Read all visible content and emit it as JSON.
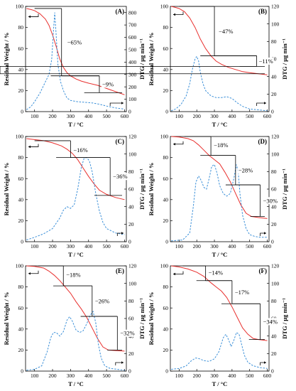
{
  "chart_data": [
    {
      "type": "line",
      "panel": "(A)",
      "xlabel": "T / °C",
      "ylabel": "Residual Weight / %",
      "y2label": "DTG / µg min⁻¹",
      "xlim": [
        50,
        610
      ],
      "ylim": [
        0,
        100
      ],
      "y2lim": [
        0,
        850
      ],
      "xticks": [
        100,
        200,
        300,
        400,
        500,
        600
      ],
      "yticks": [
        0,
        20,
        40,
        60,
        80,
        100
      ],
      "y2ticks": [
        0,
        100,
        200,
        300,
        400,
        500,
        600,
        700,
        800
      ],
      "series": [
        {
          "axis": "left",
          "style": "solid",
          "color": "#e8302e",
          "x": [
            55,
            80,
            100,
            130,
            160,
            180,
            200,
            220,
            240,
            260,
            280,
            300,
            330,
            360,
            400,
            450,
            500,
            550,
            600
          ],
          "y": [
            98,
            97,
            96,
            93,
            88,
            82,
            73,
            62,
            50,
            42,
            37,
            34,
            31,
            29,
            27,
            25,
            22,
            19,
            16
          ]
        },
        {
          "axis": "right",
          "style": "dashed",
          "color": "#3a8fd8",
          "x": [
            55,
            80,
            100,
            130,
            160,
            180,
            195,
            205,
            212,
            220,
            230,
            245,
            260,
            280,
            300,
            340,
            380,
            420,
            460,
            500,
            550,
            600
          ],
          "y": [
            15,
            40,
            80,
            150,
            240,
            300,
            420,
            650,
            800,
            620,
            380,
            240,
            170,
            110,
            90,
            80,
            75,
            70,
            60,
            45,
            30,
            20
          ]
        }
      ],
      "annotations": [
        "−65%",
        "−9%"
      ],
      "marks": {
        "bracket_temps": [
          100,
          250,
          460
        ],
        "levels": [
          98,
          34,
          18
        ],
        "right_arrow_at": 520
      }
    },
    {
      "type": "line",
      "panel": "(B)",
      "xlabel": "T / °C",
      "ylabel": "Residual Weight / %",
      "y2label": "DTG / µg min⁻¹",
      "xlim": [
        50,
        610
      ],
      "ylim": [
        0,
        100
      ],
      "y2lim": [
        0,
        120
      ],
      "xticks": [
        100,
        200,
        300,
        400,
        500,
        600
      ],
      "yticks": [
        0,
        20,
        40,
        60,
        80,
        100
      ],
      "y2ticks": [
        0,
        20,
        40,
        60,
        80,
        100,
        120
      ],
      "series": [
        {
          "axis": "left",
          "style": "solid",
          "color": "#e8302e",
          "x": [
            55,
            80,
            100,
            130,
            160,
            190,
            220,
            250,
            280,
            310,
            340,
            380,
            420,
            460,
            500,
            550,
            600
          ],
          "y": [
            100,
            99,
            98,
            95,
            89,
            80,
            69,
            60,
            53,
            48,
            45,
            42,
            40,
            38,
            37,
            36,
            35
          ]
        },
        {
          "axis": "right",
          "style": "dashed",
          "color": "#3a8fd8",
          "x": [
            55,
            80,
            110,
            140,
            160,
            175,
            190,
            200,
            210,
            220,
            235,
            250,
            280,
            310,
            340,
            370,
            400,
            430,
            460,
            500,
            550,
            600
          ],
          "y": [
            1,
            3,
            8,
            18,
            32,
            48,
            60,
            63,
            58,
            45,
            32,
            24,
            18,
            16,
            16,
            17,
            15,
            10,
            6,
            3,
            2,
            1
          ]
        }
      ],
      "annotations": [
        "−47%",
        "−11%"
      ],
      "marks": {
        "bracket_temps": [
          100,
          300,
          540
        ],
        "levels": [
          100,
          53,
          43,
          36
        ],
        "right_arrow_at": 540
      }
    },
    {
      "type": "line",
      "panel": "(C)",
      "xlabel": "T / °C",
      "ylabel": "Residual Weight / %",
      "y2label": "DTG / µg min⁻¹",
      "xlim": [
        50,
        610
      ],
      "ylim": [
        0,
        100
      ],
      "y2lim": [
        0,
        120
      ],
      "xticks": [
        100,
        200,
        300,
        400,
        500,
        600
      ],
      "yticks": [
        0,
        20,
        40,
        60,
        80,
        100
      ],
      "y2ticks": [
        0,
        20,
        40,
        60,
        80,
        100,
        120
      ],
      "series": [
        {
          "axis": "left",
          "style": "solid",
          "color": "#e8302e",
          "x": [
            55,
            100,
            150,
            200,
            250,
            280,
            310,
            340,
            370,
            400,
            430,
            460,
            500,
            550,
            600
          ],
          "y": [
            98,
            97,
            96,
            94,
            91,
            88,
            84,
            78,
            70,
            62,
            55,
            49,
            45,
            42,
            40
          ]
        },
        {
          "axis": "right",
          "style": "dashed",
          "color": "#3a8fd8",
          "x": [
            55,
            100,
            150,
            200,
            240,
            260,
            280,
            300,
            320,
            340,
            360,
            375,
            390,
            405,
            420,
            440,
            460,
            480,
            500,
            550,
            600
          ],
          "y": [
            2,
            5,
            9,
            15,
            27,
            36,
            40,
            38,
            42,
            60,
            85,
            95,
            96,
            92,
            80,
            55,
            35,
            22,
            15,
            10,
            8
          ]
        }
      ],
      "annotations": [
        "−16%",
        "−36%"
      ],
      "marks": {
        "bracket_temps": [
          100,
          300,
          520
        ],
        "levels": [
          96,
          80,
          44
        ],
        "right_arrow_at": 560
      }
    },
    {
      "type": "line",
      "panel": "(D)",
      "xlabel": "T / °C",
      "ylabel": "Residual Weight / %",
      "y2label": "DTG / µg min⁻¹",
      "xlim": [
        50,
        610
      ],
      "ylim": [
        0,
        100
      ],
      "y2lim": [
        0,
        120
      ],
      "xticks": [
        100,
        200,
        300,
        400,
        500,
        600
      ],
      "yticks": [
        0,
        20,
        40,
        60,
        80,
        100
      ],
      "y2ticks": [
        0,
        20,
        40,
        60,
        80,
        100,
        120
      ],
      "series": [
        {
          "axis": "left",
          "style": "solid",
          "color": "#e8302e",
          "x": [
            55,
            100,
            150,
            180,
            210,
            240,
            270,
            300,
            330,
            360,
            390,
            420,
            450,
            480,
            510,
            550,
            600
          ],
          "y": [
            100,
            99.5,
            98,
            96,
            92,
            87,
            82,
            78,
            74,
            66,
            57,
            46,
            35,
            27,
            24,
            23,
            22
          ]
        },
        {
          "axis": "right",
          "style": "dashed",
          "color": "#3a8fd8",
          "x": [
            55,
            120,
            160,
            180,
            195,
            210,
            225,
            240,
            255,
            270,
            285,
            300,
            315,
            330,
            350,
            370,
            390,
            410,
            425,
            435,
            445,
            460,
            480,
            500,
            530,
            560,
            600
          ],
          "y": [
            1,
            2,
            10,
            40,
            68,
            75,
            70,
            62,
            60,
            72,
            86,
            88,
            78,
            64,
            55,
            52,
            55,
            72,
            88,
            80,
            55,
            30,
            15,
            8,
            6,
            5,
            5
          ]
        }
      ],
      "annotations": [
        "−18%",
        "−28%",
        "−30%"
      ],
      "marks": {
        "bracket_temps": [
          130,
          280,
          420,
          560
        ],
        "levels": [
          100,
          82,
          54,
          24
        ],
        "right_arrow_at": 560
      }
    },
    {
      "type": "line",
      "panel": "(E)",
      "xlabel": "T / °C",
      "ylabel": "Residual Weight / %",
      "y2label": "DTG / µg min⁻¹",
      "xlim": [
        50,
        610
      ],
      "ylim": [
        0,
        100
      ],
      "y2lim": [
        0,
        120
      ],
      "xticks": [
        100,
        200,
        300,
        400,
        500,
        600
      ],
      "yticks": [
        0,
        20,
        40,
        60,
        80,
        100
      ],
      "y2ticks": [
        0,
        20,
        40,
        60,
        80,
        100,
        120
      ],
      "series": [
        {
          "axis": "left",
          "style": "solid",
          "color": "#e8302e",
          "x": [
            55,
            100,
            150,
            180,
            210,
            240,
            270,
            300,
            330,
            360,
            390,
            420,
            450,
            480,
            510,
            550,
            600
          ],
          "y": [
            100,
            99.5,
            98,
            95,
            91,
            86,
            80,
            74,
            66,
            59,
            51,
            41,
            31,
            23,
            20,
            19.5,
            19
          ]
        },
        {
          "axis": "right",
          "style": "dashed",
          "color": "#3a8fd8",
          "x": [
            55,
            100,
            140,
            170,
            190,
            205,
            220,
            240,
            260,
            280,
            295,
            310,
            330,
            350,
            370,
            390,
            410,
            425,
            440,
            455,
            470,
            490,
            520,
            560,
            600
          ],
          "y": [
            1,
            2,
            6,
            22,
            38,
            44,
            44,
            40,
            45,
            58,
            62,
            57,
            47,
            44,
            46,
            54,
            64,
            68,
            55,
            30,
            15,
            6,
            3,
            2,
            1
          ]
        }
      ],
      "annotations": [
        "−18%",
        "−26%",
        "−32%"
      ],
      "marks": {
        "bracket_temps": [
          120,
          260,
          420,
          560
        ],
        "levels": [
          100,
          81,
          52,
          20
        ],
        "right_arrow_at": 550
      }
    },
    {
      "type": "line",
      "panel": "(F)",
      "xlabel": "T / °C",
      "ylabel": "Residual Weight / %",
      "y2label": "DTG / µg min⁻¹",
      "xlim": [
        50,
        610
      ],
      "ylim": [
        0,
        100
      ],
      "y2lim": [
        0,
        120
      ],
      "xticks": [
        100,
        200,
        300,
        400,
        500,
        600
      ],
      "yticks": [
        0,
        20,
        40,
        60,
        80,
        100
      ],
      "y2ticks": [
        0,
        20,
        40,
        60,
        80,
        100,
        120
      ],
      "series": [
        {
          "axis": "left",
          "style": "solid",
          "color": "#e8302e",
          "x": [
            55,
            100,
            150,
            200,
            240,
            280,
            310,
            340,
            370,
            400,
            430,
            460,
            490,
            520,
            550,
            600
          ],
          "y": [
            100,
            99,
            97,
            94,
            90,
            84,
            80,
            76,
            70,
            61,
            51,
            41,
            35,
            31,
            30,
            29
          ]
        },
        {
          "axis": "right",
          "style": "dashed",
          "color": "#3a8fd8",
          "x": [
            55,
            100,
            140,
            170,
            195,
            215,
            240,
            270,
            300,
            325,
            350,
            365,
            380,
            395,
            410,
            425,
            440,
            455,
            470,
            490,
            520,
            560,
            600
          ],
          "y": [
            2,
            3,
            6,
            12,
            15,
            14,
            12,
            11,
            14,
            22,
            38,
            42,
            36,
            28,
            35,
            44,
            42,
            30,
            18,
            10,
            6,
            4,
            3
          ]
        }
      ],
      "annotations": [
        "−14%",
        "−17%",
        "−34%"
      ],
      "marks": {
        "bracket_temps": [
          120,
          250,
          400,
          560
        ],
        "levels": [
          100,
          86,
          64,
          30
        ],
        "right_arrow_at": 560
      }
    }
  ]
}
